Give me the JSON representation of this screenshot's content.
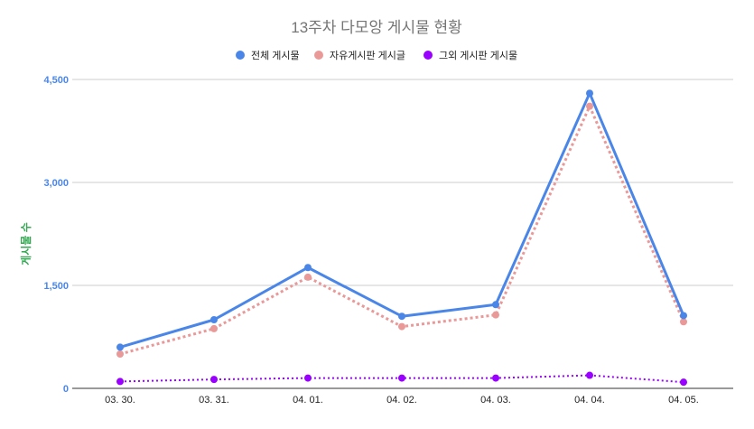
{
  "chart_data": {
    "type": "line",
    "title": "13주차 다모앙 게시물 현황",
    "xlabel": "",
    "ylabel": "게시물 수",
    "categories": [
      "03. 30.",
      "03. 31.",
      "04. 01.",
      "04. 02.",
      "04. 03.",
      "04. 04.",
      "04. 05."
    ],
    "ylim": [
      0,
      4500
    ],
    "yticks": [
      0,
      1500,
      3000,
      4500
    ],
    "ytick_labels": [
      "0",
      "1,500",
      "3,000",
      "4,500"
    ],
    "grid": true,
    "legend_position": "top",
    "series": [
      {
        "name": "전체 게시물",
        "color": "#4a86e8",
        "style": "solid",
        "values": [
          600,
          1000,
          1760,
          1050,
          1220,
          4300,
          1060
        ]
      },
      {
        "name": "자유게시판 게시글",
        "color": "#ea9999",
        "style": "dotted",
        "values": [
          500,
          870,
          1620,
          900,
          1070,
          4110,
          970
        ]
      },
      {
        "name": "그외 게시판 게시물",
        "color": "#9900ff",
        "style": "dotted",
        "values": [
          100,
          130,
          150,
          150,
          150,
          190,
          90
        ]
      }
    ],
    "colors": {
      "title": "#757575",
      "axis_label": "#34a853",
      "ytick": "#4a86e8",
      "xtick": "#222222",
      "grid": "#cccccc",
      "baseline": "#333333"
    }
  }
}
